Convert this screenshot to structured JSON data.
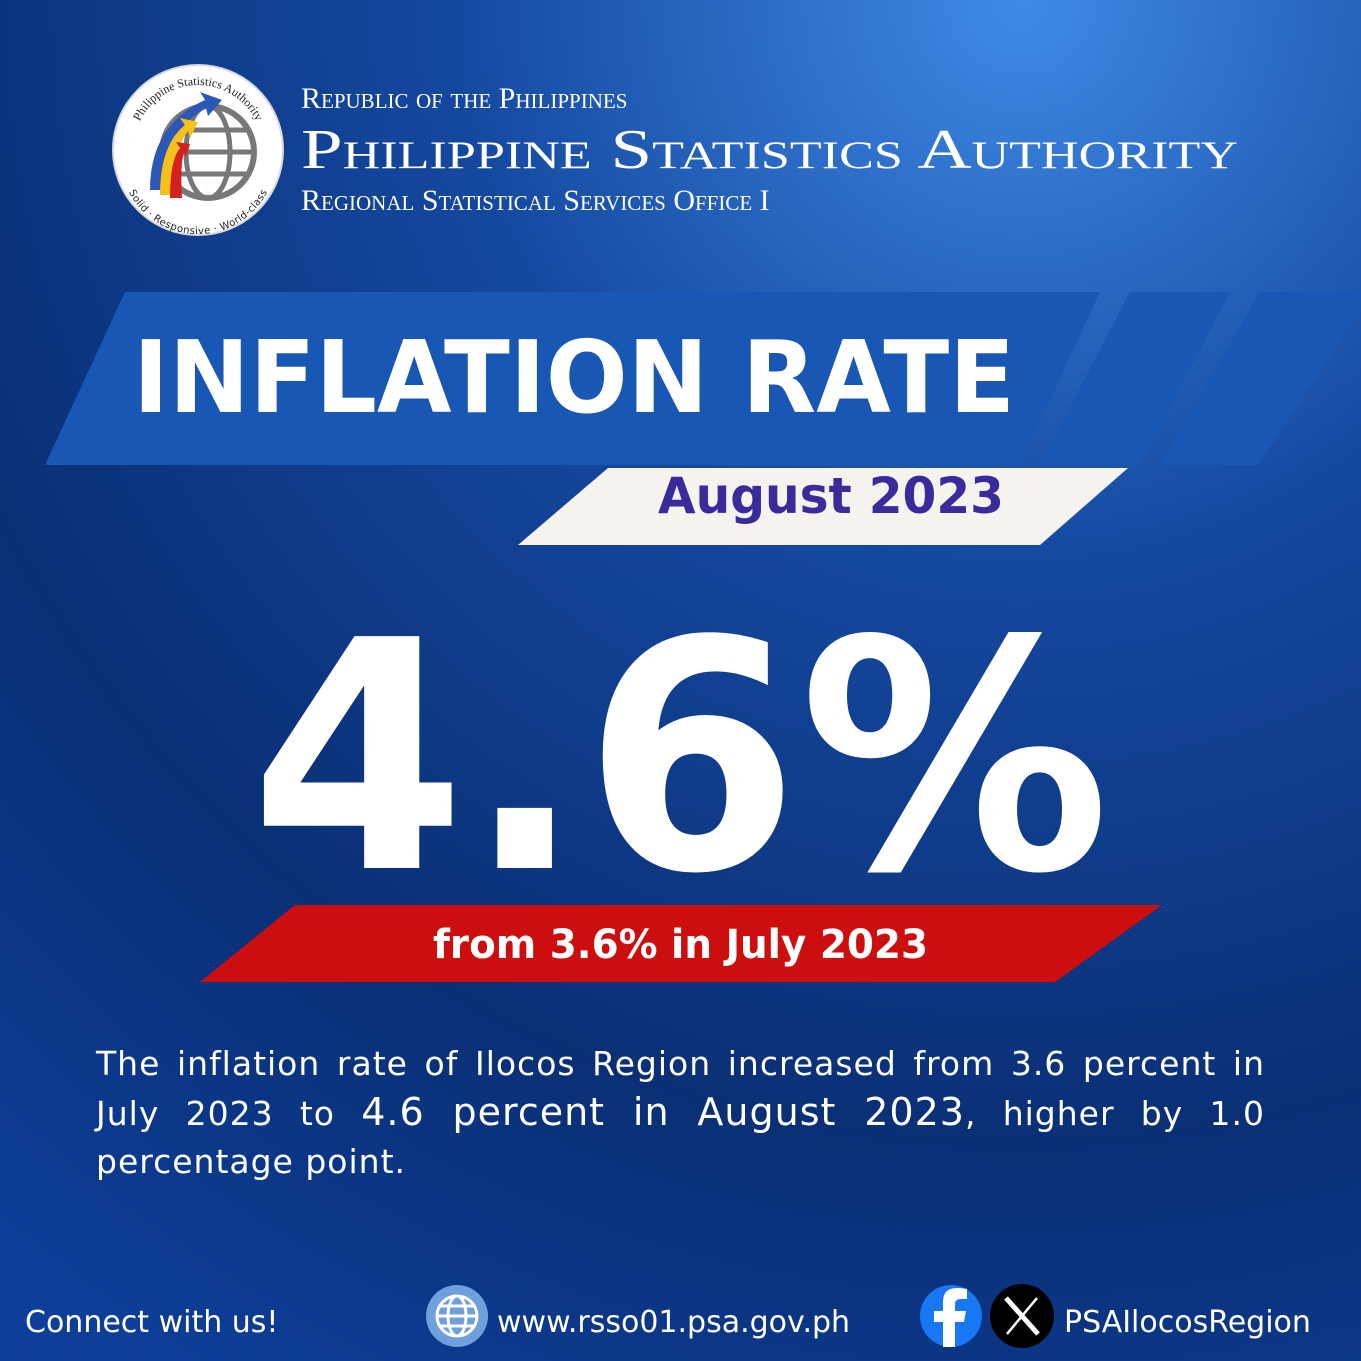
{
  "header": {
    "line1": "Republic of the Philippines",
    "title": "Philippine Statistics Authority",
    "office": "Regional Statistical Services Office I"
  },
  "logo": {
    "ring_top": "Philippine Statistics Authority",
    "ring_bottom": "Solid · Responsive · World-class"
  },
  "banner": {
    "title": "INFLATION RATE",
    "period": "August 2023"
  },
  "headline": {
    "value": "4.6%",
    "comparison": "from 3.6% in July 2023"
  },
  "body": {
    "lead": "The inflation rate of Ilocos Region increased from 3.6 percent in July 2023 to",
    "emphasis": "4.6 percent in August 2023",
    "tail": ", higher by 1.0 percentage point."
  },
  "footer": {
    "connect": "Connect with us!",
    "website": "www.rsso01.psa.gov.ph",
    "social_handle": "PSAIlocosRegion"
  }
}
